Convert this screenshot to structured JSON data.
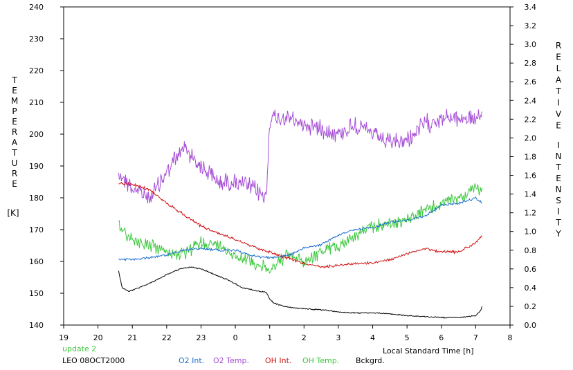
{
  "chart_data": {
    "type": "line",
    "note_update": "update 2",
    "station_date": "LEO 08OCT2000",
    "xlabel": "Local Standard Time [h]",
    "ylabel_left_letters": [
      "T",
      "E",
      "M",
      "P",
      "E",
      "R",
      "A",
      "T",
      "U",
      "R",
      "E"
    ],
    "ylabel_left_unit": "[K]",
    "ylabel_right_letters_1": [
      "R",
      "E",
      "L",
      "A",
      "T",
      "I",
      "V",
      "E"
    ],
    "ylabel_right_letters_2": [
      "I",
      "N",
      "T",
      "E",
      "N",
      "S",
      "I",
      "T",
      "Y"
    ],
    "x_ticks": [
      "19",
      "20",
      "21",
      "22",
      "23",
      "0",
      "1",
      "2",
      "3",
      "4",
      "5",
      "6",
      "7",
      "8"
    ],
    "x_range": [
      19,
      32
    ],
    "y_left_range": [
      140,
      240
    ],
    "y_left_ticks": [
      "140",
      "150",
      "160",
      "170",
      "180",
      "190",
      "200",
      "210",
      "220",
      "230",
      "240"
    ],
    "y_right_range": [
      0.0,
      3.4
    ],
    "y_right_ticks": [
      "0.0",
      "0.2",
      "0.4",
      "0.6",
      "0.8",
      "1.0",
      "1.2",
      "1.4",
      "1.6",
      "1.8",
      "2.0",
      "2.2",
      "2.4",
      "2.6",
      "2.8",
      "3.0",
      "3.2",
      "3.4"
    ],
    "series": [
      {
        "name": "O2 Int.",
        "color": "#1e6fd0",
        "axis": "right",
        "x": [
          20.6,
          21.0,
          21.5,
          22.0,
          22.5,
          23.0,
          23.5,
          24.0,
          24.5,
          25.0,
          25.5,
          26.0,
          26.5,
          27.0,
          27.5,
          28.0,
          28.5,
          29.0,
          29.5,
          30.0,
          30.5,
          31.0,
          31.2
        ],
        "y": [
          0.7,
          0.7,
          0.72,
          0.75,
          0.8,
          0.82,
          0.8,
          0.8,
          0.74,
          0.72,
          0.74,
          0.82,
          0.86,
          0.96,
          1.02,
          1.04,
          1.1,
          1.12,
          1.16,
          1.28,
          1.3,
          1.36,
          1.3
        ]
      },
      {
        "name": "O2 Temp.",
        "color": "#a64fd6",
        "axis": "left",
        "x": [
          20.6,
          21.0,
          21.5,
          22.0,
          22.5,
          23.0,
          23.5,
          24.0,
          24.5,
          24.9,
          25.0,
          25.5,
          26.0,
          26.5,
          27.0,
          27.5,
          28.0,
          28.5,
          29.0,
          29.5,
          30.0,
          30.5,
          31.0,
          31.2
        ],
        "y": [
          188,
          183,
          180,
          188,
          196,
          190,
          185,
          185,
          183,
          180,
          205,
          205,
          203,
          202,
          200,
          203,
          200,
          197,
          198,
          203,
          205,
          205,
          205,
          205
        ]
      },
      {
        "name": "OH Int.",
        "color": "#d01818",
        "axis": "right",
        "x": [
          20.6,
          21.0,
          21.5,
          22.0,
          22.5,
          23.0,
          23.5,
          24.0,
          24.5,
          25.0,
          25.5,
          26.0,
          26.5,
          27.0,
          27.5,
          28.0,
          28.5,
          29.0,
          29.5,
          30.0,
          30.5,
          31.0,
          31.2
        ],
        "y": [
          1.52,
          1.5,
          1.45,
          1.3,
          1.18,
          1.06,
          0.98,
          0.92,
          0.84,
          0.78,
          0.72,
          0.66,
          0.62,
          0.64,
          0.66,
          0.66,
          0.7,
          0.76,
          0.82,
          0.78,
          0.78,
          0.88,
          0.96
        ]
      },
      {
        "name": "OH Temp.",
        "color": "#3ec83e",
        "axis": "left",
        "x": [
          20.6,
          21.0,
          21.5,
          22.0,
          22.5,
          23.0,
          23.5,
          24.0,
          24.5,
          25.0,
          25.5,
          26.0,
          26.5,
          27.0,
          27.5,
          28.0,
          28.5,
          29.0,
          29.5,
          30.0,
          30.5,
          31.0,
          31.2
        ],
        "y": [
          171,
          167,
          165,
          163,
          162,
          166,
          165,
          162,
          160,
          157,
          162,
          160,
          163,
          165,
          168,
          171,
          172,
          173,
          176,
          178,
          180,
          183,
          182
        ]
      },
      {
        "name": "Bckgrd.",
        "color": "#000000",
        "axis": "right",
        "x": [
          20.6,
          20.7,
          20.9,
          21.2,
          21.6,
          22.0,
          22.4,
          22.7,
          23.0,
          23.4,
          23.8,
          24.2,
          24.7,
          24.9,
          25.0,
          25.1,
          25.4,
          25.8,
          26.2,
          26.6,
          27.0,
          27.5,
          28.0,
          28.5,
          29.0,
          29.5,
          30.0,
          30.5,
          31.0,
          31.15,
          31.2
        ],
        "y": [
          0.58,
          0.4,
          0.36,
          0.4,
          0.46,
          0.54,
          0.6,
          0.62,
          0.6,
          0.54,
          0.48,
          0.4,
          0.36,
          0.35,
          0.28,
          0.24,
          0.2,
          0.18,
          0.17,
          0.16,
          0.14,
          0.13,
          0.13,
          0.12,
          0.1,
          0.09,
          0.08,
          0.08,
          0.1,
          0.16,
          0.22
        ]
      }
    ]
  }
}
